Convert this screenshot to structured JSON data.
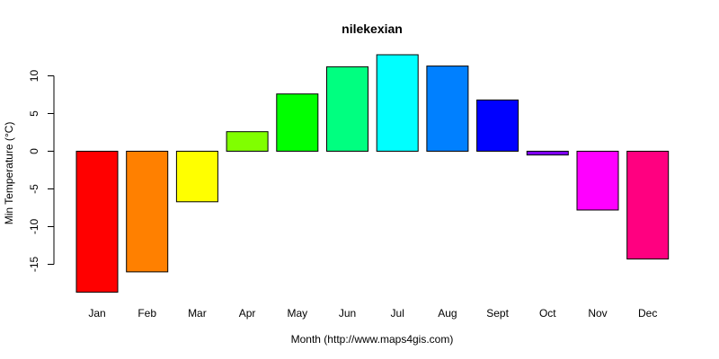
{
  "chart_data": {
    "type": "bar",
    "title": "nilekexian",
    "xlabel": "Month (http://www.maps4gis.com)",
    "ylabel": "Min Temperature (°C)",
    "categories": [
      "Jan",
      "Feb",
      "Mar",
      "Apr",
      "May",
      "Jun",
      "Jul",
      "Aug",
      "Sept",
      "Oct",
      "Nov",
      "Dec"
    ],
    "values": [
      -18.7,
      -16.0,
      -6.7,
      2.6,
      7.6,
      11.2,
      12.8,
      11.3,
      6.8,
      -0.5,
      -7.8,
      -14.3
    ],
    "colors": [
      "#FF0000",
      "#FF8000",
      "#FFFF00",
      "#80FF00",
      "#00FF00",
      "#00FF80",
      "#00FFFF",
      "#0080FF",
      "#0000FF",
      "#8000FF",
      "#FF00FF",
      "#FF0080"
    ],
    "yticks": [
      10,
      5,
      0,
      -5,
      -10,
      -15
    ],
    "ylim": [
      -19,
      13
    ],
    "grid": false,
    "legend": "none"
  }
}
